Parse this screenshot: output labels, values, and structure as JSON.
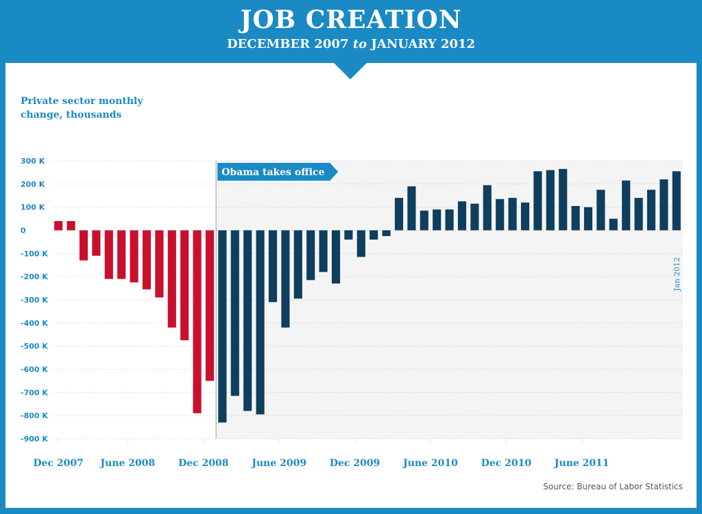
{
  "header": {
    "title": "JOB CREATION",
    "subtitle_start": "DECEMBER 2007",
    "subtitle_mid": "to",
    "subtitle_end": "JANUARY 2012"
  },
  "source": "Source: Bureau of Labor Statistics",
  "colors": {
    "frame": "#1a8ac4",
    "before": "#c8102e",
    "after": "#0f3e5e",
    "shade": "#f4f4f4",
    "label": "#1a8ac4"
  },
  "chart_data": {
    "type": "bar",
    "ylabel": "Private sector monthly change, thousands",
    "ylim": [
      -900,
      300
    ],
    "yticks": [
      300,
      200,
      100,
      0,
      -100,
      -200,
      -300,
      -400,
      -500,
      -600,
      -700,
      -800,
      -900
    ],
    "ytick_labels": [
      "300 K",
      "200 K",
      "100 K",
      "0",
      "-100 K",
      "-200 K",
      "-300 K",
      "-400 K",
      "-500 K",
      "-600 K",
      "-700 K",
      "-800 K",
      "-900 K"
    ],
    "x_tick_labels": [
      {
        "label": "Dec 2007",
        "index": 0
      },
      {
        "label": "June 2008",
        "index": 6
      },
      {
        "label": "Dec 2008",
        "index": 12
      },
      {
        "label": "June 2009",
        "index": 18
      },
      {
        "label": "Dec 2009",
        "index": 24
      },
      {
        "label": "June 2010",
        "index": 30
      },
      {
        "label": "Dec 2010",
        "index": 36
      },
      {
        "label": "June 2011",
        "index": 42
      }
    ],
    "end_label": "Jan 2012",
    "grid": true,
    "annotation": {
      "label": "Obama takes office",
      "index": 13
    },
    "values": [
      40,
      40,
      -130,
      -110,
      -210,
      -210,
      -225,
      -255,
      -290,
      -420,
      -475,
      -790,
      -650,
      -830,
      -715,
      -780,
      -795,
      -310,
      -420,
      -295,
      -215,
      -180,
      -230,
      -40,
      -115,
      -40,
      -25,
      140,
      190,
      85,
      90,
      90,
      125,
      115,
      195,
      135,
      140,
      120,
      255,
      260,
      265,
      105,
      100,
      175,
      50,
      215,
      140,
      175,
      220,
      255
    ]
  }
}
